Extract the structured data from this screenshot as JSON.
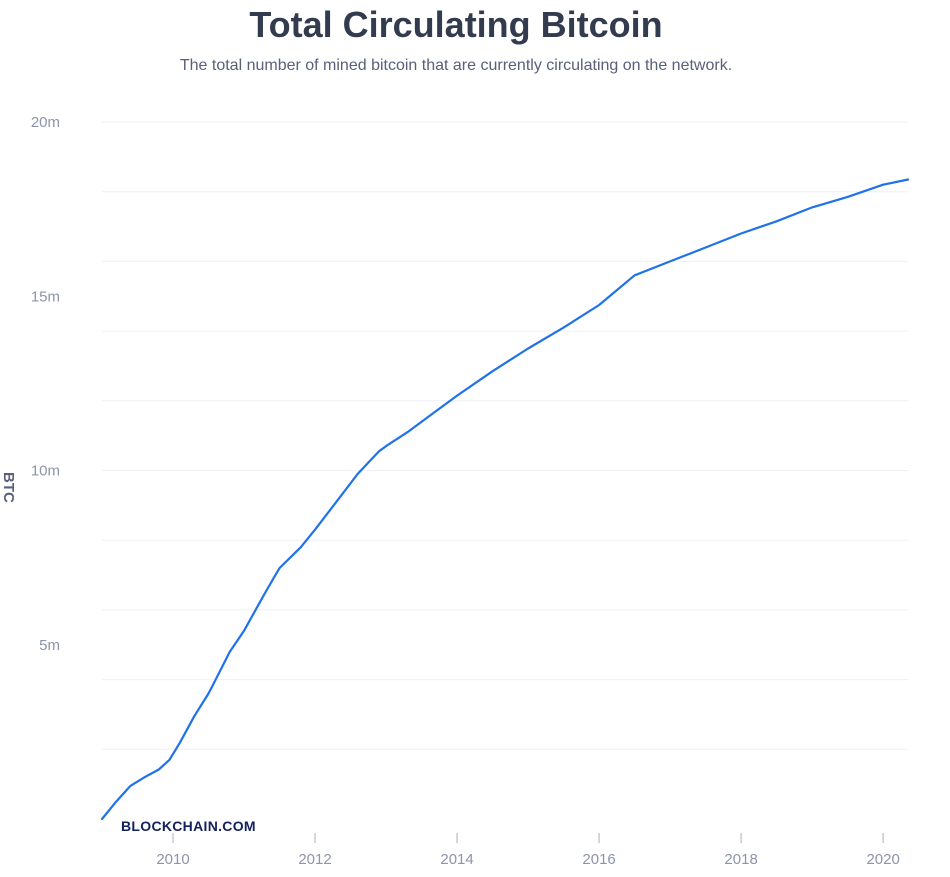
{
  "chart_data": {
    "type": "line",
    "title": "Total Circulating Bitcoin",
    "subtitle": "The total number of mined bitcoin that are currently circulating on the network.",
    "ylabel": "BTC",
    "xlabel": "",
    "xlim": [
      2009.0,
      2020.35
    ],
    "ylim": [
      0,
      20000000
    ],
    "yticks": [
      {
        "value": 5000000,
        "label": "5m"
      },
      {
        "value": 10000000,
        "label": "10m"
      },
      {
        "value": 15000000,
        "label": "15m"
      },
      {
        "value": 20000000,
        "label": "20m"
      }
    ],
    "ygrid_step": 2000000,
    "xticks": [
      {
        "value": 2010,
        "label": "2010"
      },
      {
        "value": 2012,
        "label": "2012"
      },
      {
        "value": 2014,
        "label": "2014"
      },
      {
        "value": 2016,
        "label": "2016"
      },
      {
        "value": 2018,
        "label": "2018"
      },
      {
        "value": 2020,
        "label": "2020"
      }
    ],
    "grid": true,
    "legend": "none",
    "series": [
      {
        "color": "#1f72e8",
        "x": [
          2009.0,
          2009.2,
          2009.4,
          2009.6,
          2009.8,
          2009.95,
          2010.1,
          2010.3,
          2010.5,
          2010.55,
          2010.8,
          2011.0,
          2011.3,
          2011.5,
          2011.8,
          2012.0,
          2012.3,
          2012.6,
          2012.9,
          2013.0,
          2013.3,
          2013.6,
          2014.0,
          2014.5,
          2015.0,
          2015.5,
          2016.0,
          2016.5,
          2017.0,
          2017.5,
          2018.0,
          2018.5,
          2019.0,
          2019.5,
          2020.0,
          2020.35
        ],
        "y": [
          0,
          500000,
          950000,
          1200000,
          1420000,
          1700000,
          2200000,
          2950000,
          3600000,
          3800000,
          4800000,
          5400000,
          6500000,
          7200000,
          7800000,
          8300000,
          9100000,
          9900000,
          10550000,
          10700000,
          11100000,
          11550000,
          12150000,
          12850000,
          13500000,
          14100000,
          14750000,
          15600000,
          16000000,
          16400000,
          16800000,
          17150000,
          17550000,
          17850000,
          18200000,
          18350000
        ]
      }
    ]
  },
  "watermark": "BLOCKCHAIN.COM"
}
